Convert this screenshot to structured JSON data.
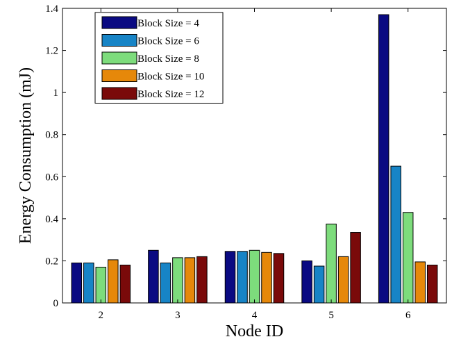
{
  "chart_data": {
    "type": "bar",
    "title": "",
    "xlabel": "Node ID",
    "ylabel": "Energy Consumption (mJ)",
    "ylim": [
      0,
      1.4
    ],
    "yticks": [
      "0",
      "0.2",
      "0.4",
      "0.6",
      "0.8",
      "1",
      "1.2",
      "1.4"
    ],
    "categories": [
      "2",
      "3",
      "4",
      "5",
      "6"
    ],
    "legend_position": "top-left",
    "grid": false,
    "series": [
      {
        "name": "Block Size = 4",
        "color": "#0a0a82",
        "values": [
          0.19,
          0.25,
          0.245,
          0.2,
          1.37
        ]
      },
      {
        "name": "Block Size = 6",
        "color": "#1784c6",
        "values": [
          0.19,
          0.19,
          0.245,
          0.175,
          0.65
        ]
      },
      {
        "name": "Block Size = 8",
        "color": "#7ddc7c",
        "values": [
          0.17,
          0.215,
          0.25,
          0.375,
          0.43
        ]
      },
      {
        "name": "Block Size = 10",
        "color": "#e6880a",
        "values": [
          0.205,
          0.215,
          0.24,
          0.22,
          0.195
        ]
      },
      {
        "name": "Block Size = 12",
        "color": "#7a0a0a",
        "values": [
          0.18,
          0.22,
          0.235,
          0.335,
          0.18
        ]
      }
    ]
  }
}
